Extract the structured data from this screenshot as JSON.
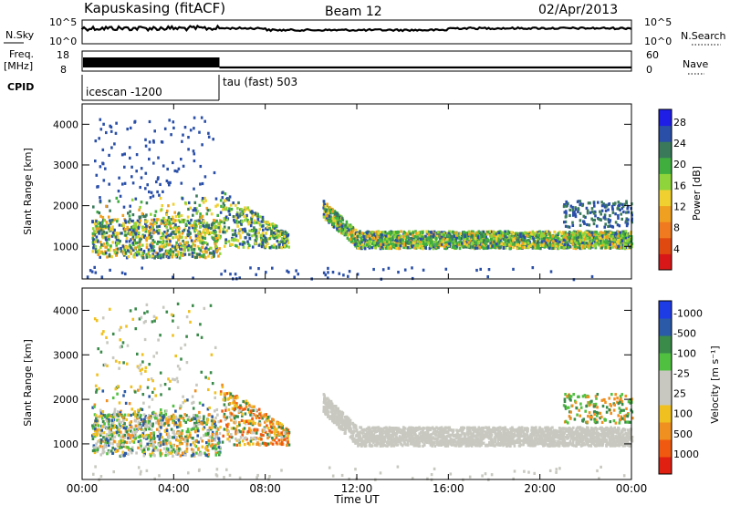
{
  "header": {
    "station": "Kapuskasing (fitACF)",
    "beam": "Beam 12",
    "date": "02/Apr/2013"
  },
  "top_panels": {
    "nsky": {
      "label": "N.Sky",
      "left_ticks": [
        "10^5",
        "10^0"
      ],
      "right_label": "N.Search",
      "right_ticks": [
        "10^5",
        "10^0"
      ]
    },
    "freq": {
      "label_line1": "Freq.",
      "label_line2": "[MHz]",
      "left_ticks": [
        "18",
        "8"
      ],
      "right_label": "Nave",
      "right_ticks": [
        "60",
        "0"
      ]
    },
    "cpid": {
      "label": "CPID",
      "segments": [
        "icescan -1200",
        "tau (fast) 503"
      ]
    }
  },
  "chart_data": [
    {
      "type": "heatmap",
      "name": "power",
      "ylabel": "Slant Range [km]",
      "yticks": [
        "1000",
        "2000",
        "3000",
        "4000"
      ],
      "ylim": [
        200,
        4500
      ],
      "xlim": [
        0,
        24
      ],
      "colorbar": {
        "label": "Power [dB]",
        "ticks": [
          "4",
          "8",
          "12",
          "16",
          "20",
          "24",
          "28"
        ],
        "colors": [
          "#1e1ee6",
          "#2a4fa8",
          "#3a7a5a",
          "#3fae3f",
          "#8fd43a",
          "#f0d030",
          "#f0a020",
          "#f07a20",
          "#e04a10",
          "#d81818"
        ]
      },
      "echo_regions": [
        {
          "t": [
            0.3,
            6.0
          ],
          "range": [
            700,
            1700
          ],
          "level": "mixed"
        },
        {
          "t": [
            0.3,
            5.8
          ],
          "range": [
            2200,
            4300
          ],
          "level": "weak"
        },
        {
          "t": [
            6.0,
            9.0
          ],
          "range": [
            900,
            2500
          ],
          "level": "moderate"
        },
        {
          "t": [
            10.5,
            24.0
          ],
          "range": [
            950,
            2300
          ],
          "level": "strong-band"
        },
        {
          "t": [
            21.0,
            24.0
          ],
          "range": [
            1500,
            2100
          ],
          "level": "weak"
        }
      ]
    },
    {
      "type": "heatmap",
      "name": "velocity",
      "ylabel": "Slant Range [km]",
      "yticks": [
        "1000",
        "2000",
        "3000",
        "4000"
      ],
      "ylim": [
        200,
        4500
      ],
      "xlim": [
        0,
        24
      ],
      "colorbar": {
        "label": "Velocity [m s⁻¹]",
        "ticks": [
          "1000",
          "500",
          "100",
          "25",
          "-25",
          "-100",
          "-500",
          "-1000"
        ],
        "colors": [
          "#1e3ce6",
          "#2a5aa8",
          "#3a8a4a",
          "#50c040",
          "#c8c8c0",
          "#c8c8c0",
          "#f0c020",
          "#f09020",
          "#f05a10",
          "#e02010"
        ]
      },
      "echo_regions": [
        {
          "t": [
            0.3,
            6.0
          ],
          "range": [
            700,
            1700
          ],
          "level": "mixed"
        },
        {
          "t": [
            6.0,
            9.0
          ],
          "range": [
            900,
            2500
          ],
          "level": "mixed"
        },
        {
          "t": [
            10.5,
            24.0
          ],
          "range": [
            950,
            2300
          ],
          "level": "ground-scatter"
        },
        {
          "t": [
            21.0,
            24.0
          ],
          "range": [
            1500,
            2100
          ],
          "level": "positive"
        }
      ]
    }
  ],
  "xaxis": {
    "label": "Time UT",
    "ticks": [
      "00:00",
      "04:00",
      "08:00",
      "12:00",
      "16:00",
      "20:00",
      "00:00"
    ]
  },
  "colors": {
    "axis": "#000000",
    "ground_scatter": "#c8c8c0"
  }
}
